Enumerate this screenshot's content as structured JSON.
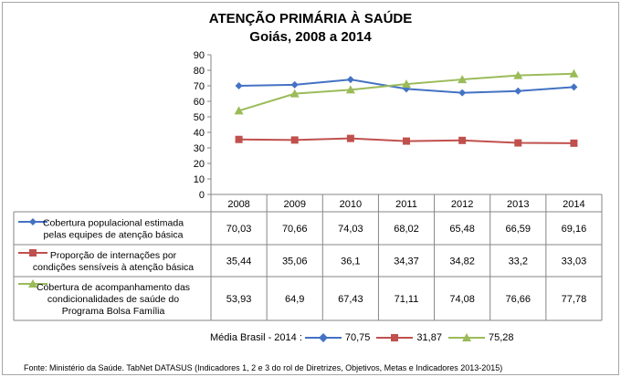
{
  "chart_data": {
    "type": "line",
    "title": "ATENÇÃO PRIMÁRIA À SAÚDE",
    "subtitle": "Goiás, 2008 a 2014",
    "categories": [
      "2008",
      "2009",
      "2010",
      "2011",
      "2012",
      "2013",
      "2014"
    ],
    "ylim": [
      0,
      90
    ],
    "yticks": [
      "0",
      "10",
      "20",
      "30",
      "40",
      "50",
      "60",
      "70",
      "80",
      "90"
    ],
    "grid": false,
    "series": [
      {
        "name_lines": [
          "Cobertura  populacional estimada",
          "pelas equipes de atenção básica"
        ],
        "color": "#4472C4",
        "marker": "diamond",
        "values": [
          70.03,
          70.66,
          74.03,
          68.02,
          65.48,
          66.59,
          69.16
        ],
        "labels": [
          "70,03",
          "70,66",
          "74,03",
          "68,02",
          "65,48",
          "66,59",
          "69,16"
        ],
        "brazil_avg_2014": "70,75"
      },
      {
        "name_lines": [
          "Proporção de internações por",
          "condições sensíveis  à atenção básica"
        ],
        "color": "#C0504D",
        "marker": "square",
        "values": [
          35.44,
          35.06,
          36.1,
          34.37,
          34.82,
          33.2,
          33.03
        ],
        "labels": [
          "35,44",
          "35,06",
          "36,1",
          "34,37",
          "34,82",
          "33,2",
          "33,03"
        ],
        "brazil_avg_2014": "31,87"
      },
      {
        "name_lines": [
          "Cobertura de acompanhamento das",
          "condicionalidades de saúde do",
          "Programa Bolsa Família"
        ],
        "color": "#9BBB59",
        "marker": "triangle",
        "values": [
          53.93,
          64.9,
          67.43,
          71.11,
          74.08,
          76.66,
          77.78
        ],
        "labels": [
          "53,93",
          "64,9",
          "67,43",
          "71,11",
          "74,08",
          "76,66",
          "77,78"
        ],
        "brazil_avg_2014": "75,28"
      }
    ],
    "brazil_avg_label": "Média Brasil - 2014 :"
  },
  "source": "Fonte: Ministério da Saúde. TabNet DATASUS (Indicadores 1, 2 e 3 do rol de Diretrizes, Objetivos, Metas e Indicadores 2013-2015)"
}
